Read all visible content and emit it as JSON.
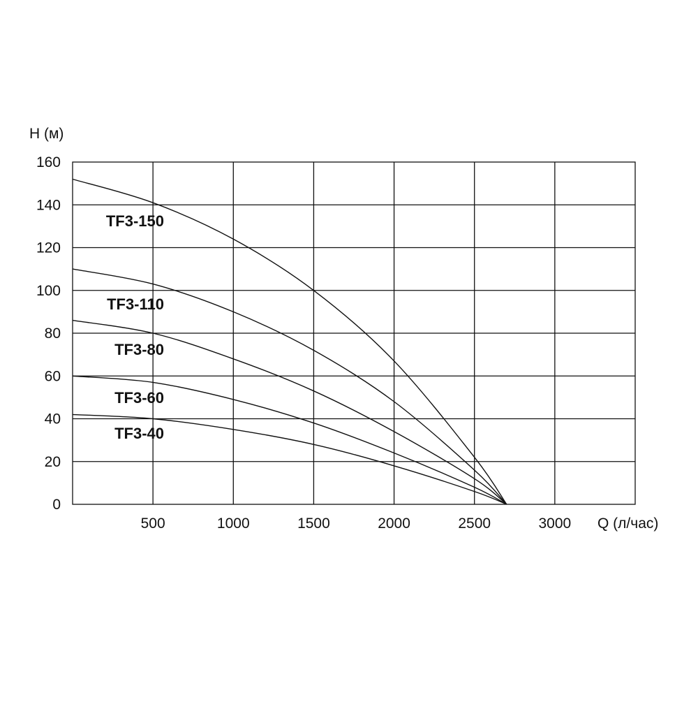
{
  "chart_data": {
    "type": "line",
    "xlabel": "Q (л/час)",
    "ylabel": "H (м)",
    "xlim": [
      0,
      3500
    ],
    "ylim": [
      0,
      160
    ],
    "x_ticks": [
      "500",
      "1000",
      "1500",
      "2000",
      "2500",
      "3000"
    ],
    "y_ticks": [
      "0",
      "20",
      "40",
      "60",
      "80",
      "100",
      "120",
      "140",
      "160"
    ],
    "grid": true,
    "legend": "none",
    "line_color": "#111111",
    "series": [
      {
        "name": "TF3-150",
        "points": [
          [
            0,
            152
          ],
          [
            500,
            141
          ],
          [
            1000,
            124
          ],
          [
            1500,
            100
          ],
          [
            2000,
            67
          ],
          [
            2500,
            22
          ],
          [
            2700,
            0
          ]
        ]
      },
      {
        "name": "TF3-110",
        "points": [
          [
            0,
            110
          ],
          [
            500,
            103
          ],
          [
            1000,
            90
          ],
          [
            1500,
            72
          ],
          [
            2000,
            48
          ],
          [
            2500,
            16
          ],
          [
            2700,
            0
          ]
        ]
      },
      {
        "name": "TF3-80",
        "points": [
          [
            0,
            86
          ],
          [
            500,
            80
          ],
          [
            1000,
            68
          ],
          [
            1500,
            53
          ],
          [
            2000,
            34
          ],
          [
            2500,
            12
          ],
          [
            2700,
            0
          ]
        ]
      },
      {
        "name": "TF3-60",
        "points": [
          [
            0,
            60
          ],
          [
            500,
            57
          ],
          [
            1000,
            49
          ],
          [
            1500,
            38
          ],
          [
            2000,
            24
          ],
          [
            2500,
            8
          ],
          [
            2700,
            0
          ]
        ]
      },
      {
        "name": "TF3-40",
        "points": [
          [
            0,
            42
          ],
          [
            500,
            40
          ],
          [
            1000,
            35
          ],
          [
            1500,
            28
          ],
          [
            2000,
            18
          ],
          [
            2500,
            6
          ],
          [
            2700,
            0
          ]
        ]
      }
    ]
  }
}
